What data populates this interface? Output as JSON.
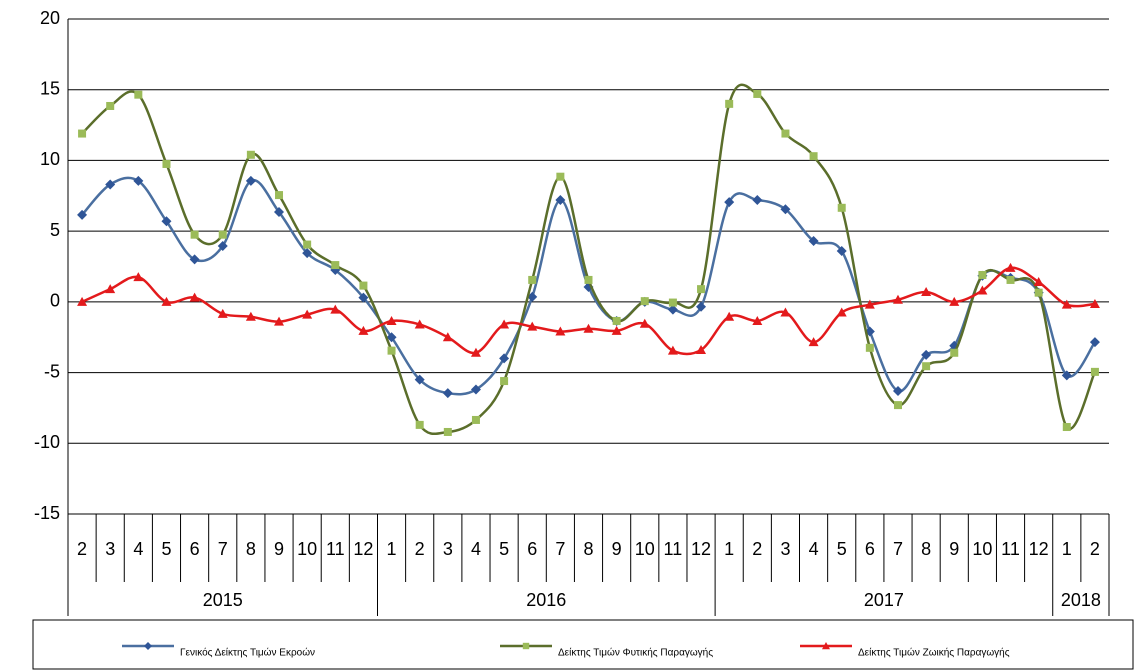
{
  "chart_data": {
    "type": "line",
    "categories": [
      "2",
      "3",
      "4",
      "5",
      "6",
      "7",
      "8",
      "9",
      "10",
      "11",
      "12",
      "1",
      "2",
      "3",
      "4",
      "5",
      "6",
      "7",
      "8",
      "9",
      "10",
      "11",
      "12",
      "1",
      "2",
      "3",
      "4",
      "5",
      "6",
      "7",
      "8",
      "9",
      "10",
      "11",
      "12",
      "1",
      "2"
    ],
    "years": [
      "2015",
      null,
      null,
      null,
      null,
      null,
      null,
      null,
      null,
      null,
      null,
      "2016",
      null,
      null,
      null,
      null,
      null,
      null,
      null,
      null,
      null,
      null,
      null,
      "2017",
      null,
      null,
      null,
      null,
      null,
      null,
      null,
      null,
      null,
      null,
      null,
      "2018",
      null
    ],
    "series": [
      {
        "name": "Γενικός Δείκτης Τιμών Εκροών",
        "color": "#4a6fa0",
        "marker_color": "#2f5597",
        "marker": "diamond",
        "values": [
          6.15,
          8.3,
          8.55,
          5.7,
          3.0,
          3.95,
          8.55,
          6.35,
          3.45,
          2.25,
          0.3,
          -2.5,
          -5.5,
          -6.45,
          -6.2,
          -4.0,
          0.35,
          7.2,
          1.05,
          -1.35,
          0,
          -0.55,
          -0.35,
          7.05,
          7.2,
          6.55,
          4.3,
          3.6,
          -2.1,
          -6.3,
          -3.75,
          -3.1,
          1.85,
          1.7,
          0.65,
          -5.2,
          -2.85
        ]
      },
      {
        "name": "Δείκτης Τιμών Φυτικής Παραγωγής",
        "color": "#5b6e2b",
        "marker_color": "#9bbb59",
        "marker": "square",
        "values": [
          11.9,
          13.85,
          14.65,
          9.75,
          4.75,
          4.75,
          10.4,
          7.55,
          4.05,
          2.6,
          1.15,
          -3.45,
          -8.7,
          -9.2,
          -8.35,
          -5.6,
          1.55,
          8.85,
          1.55,
          -1.35,
          0.05,
          -0.05,
          0.9,
          14.0,
          14.7,
          11.9,
          10.3,
          6.65,
          -3.25,
          -7.3,
          -4.55,
          -3.6,
          1.9,
          1.55,
          0.65,
          -8.85,
          -4.95
        ]
      },
      {
        "name": "Δείκτης Τιμών Ζωικής Παραγωγής",
        "color": "#e31a1c",
        "marker_color": "#e31a1c",
        "marker": "triangle",
        "values": [
          0,
          0.9,
          1.75,
          0,
          0.3,
          -0.85,
          -1.05,
          -1.4,
          -0.9,
          -0.55,
          -2.05,
          -1.35,
          -1.6,
          -2.5,
          -3.6,
          -1.6,
          -1.75,
          -2.1,
          -1.9,
          -2.05,
          -1.55,
          -3.45,
          -3.4,
          -1.05,
          -1.35,
          -0.75,
          -2.85,
          -0.75,
          -0.2,
          0.15,
          0.7,
          0,
          0.8,
          2.4,
          1.4,
          -0.2,
          -0.15
        ]
      }
    ],
    "ylim": [
      -15,
      20
    ],
    "yticks": [
      -15,
      -10,
      -5,
      0,
      5,
      10,
      15,
      20
    ],
    "grid": true,
    "smooth": true,
    "legend": "bottom"
  }
}
